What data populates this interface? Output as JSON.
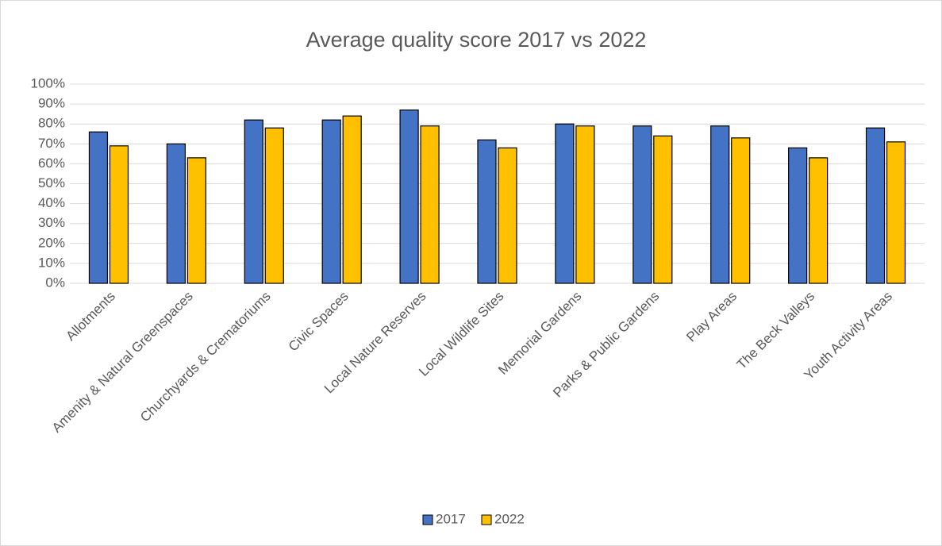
{
  "chart_data": {
    "type": "bar",
    "title": "Average quality score 2017 vs 2022",
    "categories": [
      "Allotments",
      "Amenity & Natural Greenspaces",
      "Churchyards & Crematoriums",
      "Civic Spaces",
      "Local Nature Reserves",
      "Local Wildlife Sites",
      "Memorial Gardens",
      "Parks & Public Gardens",
      "Play Areas",
      "The Beck Valleys",
      "Youth Activity Areas"
    ],
    "series": [
      {
        "name": "2017",
        "color": "#4472c4",
        "values": [
          76,
          70,
          82,
          82,
          87,
          72,
          80,
          79,
          79,
          68,
          78
        ]
      },
      {
        "name": "2022",
        "color": "#ffc000",
        "values": [
          69,
          63,
          78,
          84,
          79,
          68,
          79,
          74,
          73,
          63,
          71
        ]
      }
    ],
    "ylim": [
      0,
      100
    ],
    "yticks": [
      {
        "value": 0,
        "label": "0%"
      },
      {
        "value": 10,
        "label": "10%"
      },
      {
        "value": 20,
        "label": "20%"
      },
      {
        "value": 30,
        "label": "30%"
      },
      {
        "value": 40,
        "label": "40%"
      },
      {
        "value": 50,
        "label": "50%"
      },
      {
        "value": 60,
        "label": "60%"
      },
      {
        "value": 70,
        "label": "70%"
      },
      {
        "value": 80,
        "label": "80%"
      },
      {
        "value": 90,
        "label": "90%"
      },
      {
        "value": 100,
        "label": "100%"
      }
    ],
    "grid": true,
    "legend": "bottom"
  }
}
